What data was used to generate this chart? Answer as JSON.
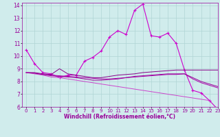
{
  "background_color": "#d0ecec",
  "grid_color": "#b0d4d4",
  "line_color": "#990099",
  "xlabel": "Windchill (Refroidissement éolien,°C)",
  "xlabel_fontsize": 5.5,
  "tick_fontsize": 5,
  "xlim": [
    -0.5,
    23
  ],
  "ylim": [
    6,
    14.2
  ],
  "yticks": [
    6,
    7,
    8,
    9,
    10,
    11,
    12,
    13,
    14
  ],
  "xticks": [
    0,
    1,
    2,
    3,
    4,
    5,
    6,
    7,
    8,
    9,
    10,
    11,
    12,
    13,
    14,
    15,
    16,
    17,
    18,
    19,
    20,
    21,
    22,
    23
  ],
  "series": [
    {
      "x": [
        0,
        1,
        2,
        3,
        4,
        5,
        6,
        7,
        8,
        9,
        10,
        11,
        12,
        13,
        14,
        15,
        16,
        17,
        18,
        19,
        20,
        21,
        22,
        23
      ],
      "y": [
        10.5,
        9.4,
        8.7,
        8.6,
        8.3,
        8.5,
        8.5,
        9.6,
        9.9,
        10.4,
        11.5,
        12.0,
        11.7,
        13.6,
        14.1,
        11.6,
        11.5,
        11.8,
        11.0,
        8.9,
        7.3,
        7.1,
        6.5,
        5.8
      ],
      "color": "#cc00cc",
      "lw": 0.8,
      "marker": "+",
      "ms": 3
    },
    {
      "x": [
        0,
        1,
        2,
        3,
        4,
        5,
        6,
        7,
        8,
        9,
        10,
        11,
        12,
        13,
        14,
        15,
        16,
        17,
        18,
        19,
        20,
        21,
        22,
        23
      ],
      "y": [
        8.7,
        8.7,
        8.6,
        8.55,
        9.0,
        8.6,
        8.5,
        8.4,
        8.3,
        8.3,
        8.4,
        8.5,
        8.55,
        8.6,
        8.7,
        8.75,
        8.8,
        8.85,
        8.9,
        8.9,
        8.9,
        8.9,
        8.9,
        8.9
      ],
      "color": "#880088",
      "lw": 0.7,
      "marker": null,
      "ms": 0
    },
    {
      "x": [
        0,
        1,
        2,
        3,
        4,
        5,
        6,
        7,
        8,
        9,
        10,
        11,
        12,
        13,
        14,
        15,
        16,
        17,
        18,
        19,
        20,
        21,
        22,
        23
      ],
      "y": [
        8.7,
        8.65,
        8.55,
        8.5,
        8.45,
        8.4,
        8.35,
        8.3,
        8.25,
        8.2,
        8.2,
        8.25,
        8.3,
        8.35,
        8.4,
        8.45,
        8.5,
        8.55,
        8.55,
        8.6,
        8.2,
        7.9,
        7.7,
        7.5
      ],
      "color": "#aa00aa",
      "lw": 0.7,
      "marker": null,
      "ms": 0
    },
    {
      "x": [
        0,
        1,
        2,
        3,
        4,
        5,
        6,
        7,
        8,
        9,
        10,
        11,
        12,
        13,
        14,
        15,
        16,
        17,
        18,
        19,
        20,
        21,
        22,
        23
      ],
      "y": [
        8.7,
        8.6,
        8.5,
        8.35,
        8.3,
        8.2,
        8.1,
        8.0,
        7.9,
        7.8,
        7.7,
        7.6,
        7.5,
        7.4,
        7.3,
        7.2,
        7.1,
        7.0,
        6.9,
        6.8,
        6.7,
        6.6,
        6.5,
        5.8
      ],
      "color": "#cc44cc",
      "lw": 0.7,
      "marker": null,
      "ms": 0
    },
    {
      "x": [
        0,
        1,
        2,
        3,
        4,
        5,
        6,
        7,
        8,
        9,
        10,
        11,
        12,
        13,
        14,
        15,
        16,
        17,
        18,
        19,
        20,
        21,
        22,
        23
      ],
      "y": [
        8.7,
        8.65,
        8.55,
        8.45,
        8.4,
        8.35,
        8.3,
        8.2,
        8.1,
        8.1,
        8.15,
        8.2,
        8.3,
        8.4,
        8.45,
        8.5,
        8.55,
        8.6,
        8.6,
        8.6,
        8.3,
        8.0,
        7.8,
        7.6
      ],
      "color": "#990099",
      "lw": 0.7,
      "marker": null,
      "ms": 0
    }
  ]
}
